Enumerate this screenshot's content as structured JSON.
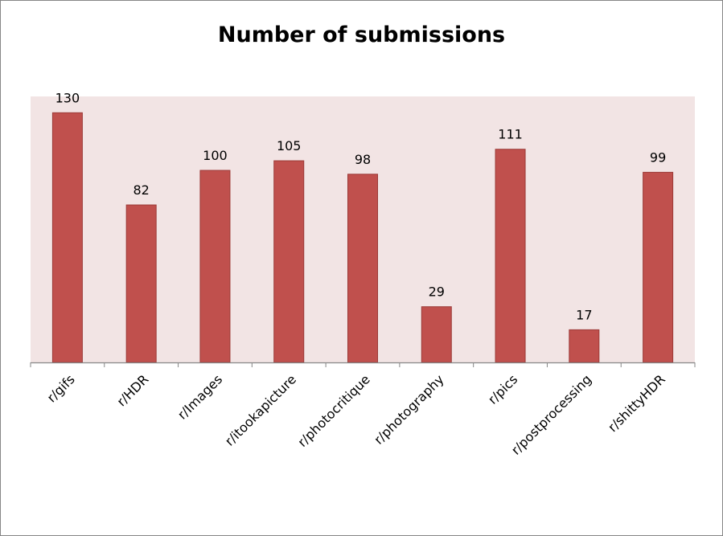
{
  "chart_data": {
    "type": "bar",
    "title": "Number of submissions",
    "xlabel": "",
    "ylabel": "",
    "ylim": [
      0,
      140
    ],
    "grid": false,
    "legend": "none",
    "categories": [
      "r/gifs",
      "r/HDR",
      "r/Images",
      "r/itookapicture",
      "r/photocritique",
      "r/photography",
      "r/pics",
      "r/postprocessing",
      "r/shittyHDR"
    ],
    "values": [
      130,
      82,
      100,
      105,
      98,
      29,
      111,
      17,
      99
    ],
    "data_labels": [
      "130",
      "82",
      "100",
      "105",
      "98",
      "29",
      "111",
      "17",
      "99"
    ],
    "colors": {
      "bar_fill": "#c0504d",
      "bar_stroke": "#9b3a37",
      "plot_background": "#f2e4e4",
      "axis_line": "#868686"
    }
  }
}
